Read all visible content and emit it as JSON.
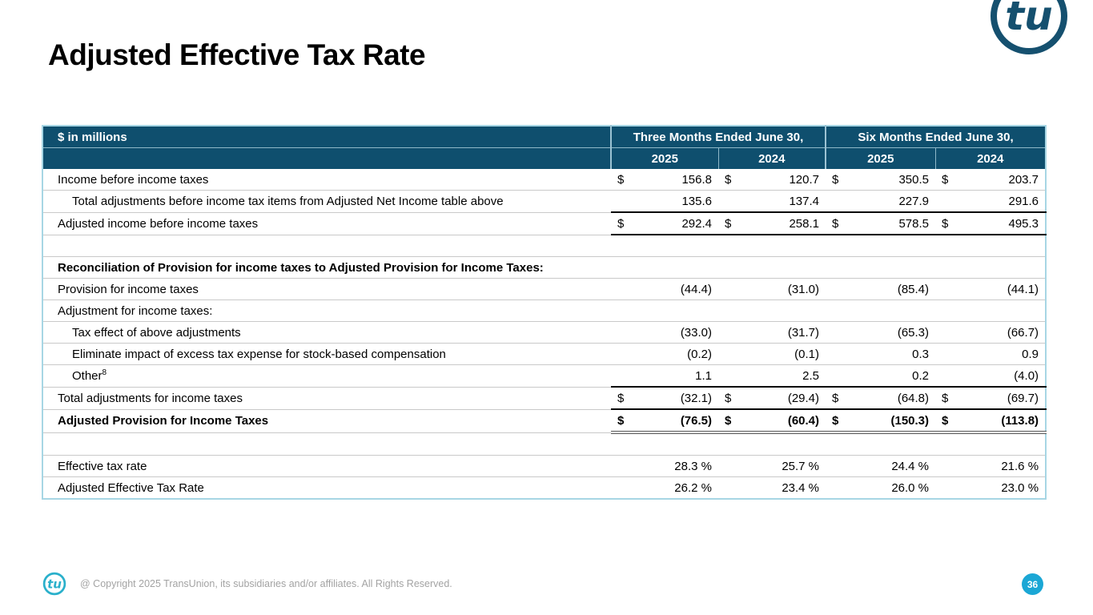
{
  "title": "Adjusted Effective Tax Rate",
  "brand": {
    "logo_text": "tu",
    "navy": "#15506f",
    "cyan": "#2ab0cb",
    "badge_bg": "#1ba7d5"
  },
  "table": {
    "unit_label": "$ in millions",
    "groups": [
      "Three Months Ended June 30,",
      "Six Months Ended June 30,"
    ],
    "years": [
      "2025",
      "2024",
      "2025",
      "2024"
    ],
    "rows": [
      {
        "label": "Income before income taxes",
        "dollar": true,
        "values": [
          "156.8",
          "120.7",
          "350.5",
          "203.7"
        ]
      },
      {
        "label": "Total adjustments before income tax items from Adjusted Net Income table above",
        "indent": true,
        "values": [
          "135.6",
          "137.4",
          "227.9",
          "291.6"
        ]
      },
      {
        "label": "Adjusted income before income taxes",
        "dollar": true,
        "top_black": true,
        "bottom_black": true,
        "values": [
          "292.4",
          "258.1",
          "578.5",
          "495.3"
        ]
      },
      {
        "label": "",
        "values": [
          "",
          "",
          "",
          ""
        ]
      },
      {
        "label": "Reconciliation of Provision for income taxes to Adjusted Provision for Income Taxes:",
        "bold": true,
        "values": [
          "",
          "",
          "",
          ""
        ]
      },
      {
        "label": "Provision for income taxes",
        "values": [
          "(44.4)",
          "(31.0)",
          "(85.4)",
          "(44.1)"
        ]
      },
      {
        "label": "Adjustment for income taxes:",
        "values": [
          "",
          "",
          "",
          ""
        ]
      },
      {
        "label": "Tax effect of above adjustments",
        "indent": true,
        "values": [
          "(33.0)",
          "(31.7)",
          "(65.3)",
          "(66.7)"
        ]
      },
      {
        "label": "Eliminate impact of excess tax expense for stock-based compensation",
        "indent": true,
        "values": [
          "(0.2)",
          "(0.1)",
          "0.3",
          "0.9"
        ]
      },
      {
        "label": "Other",
        "sup": "8",
        "indent": true,
        "values": [
          "1.1",
          "2.5",
          "0.2",
          "(4.0)"
        ]
      },
      {
        "label": "Total adjustments for income taxes",
        "dollar": true,
        "top_black": true,
        "values": [
          "(32.1)",
          "(29.4)",
          "(64.8)",
          "(69.7)"
        ]
      },
      {
        "label": "Adjusted Provision for Income Taxes",
        "bold": true,
        "dollar": true,
        "top_black": true,
        "bottom_double": true,
        "values": [
          "(76.5)",
          "(60.4)",
          "(150.3)",
          "(113.8)"
        ]
      },
      {
        "label": "",
        "values": [
          "",
          "",
          "",
          ""
        ]
      },
      {
        "label": "Effective tax rate",
        "values": [
          "28.3 %",
          "25.7 %",
          "24.4 %",
          "21.6 %"
        ]
      },
      {
        "label": "Adjusted Effective Tax Rate",
        "values": [
          "26.2 %",
          "23.4 %",
          "26.0 %",
          "23.0 %"
        ]
      }
    ]
  },
  "footer": {
    "copyright": "@ Copyright 2025 TransUnion, its subsidiaries and/or affiliates.  All Rights Reserved.",
    "page_number": "36"
  }
}
